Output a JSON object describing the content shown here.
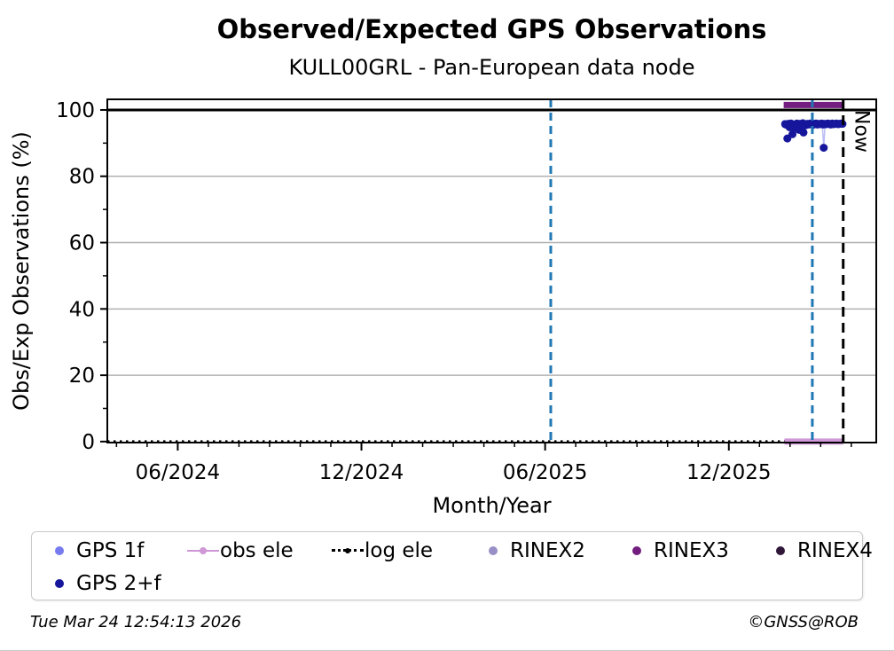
{
  "header": {
    "title": "Observed/Expected GPS Observations",
    "subtitle": "KULL00GRL - Pan-European data node"
  },
  "footer": {
    "timestamp": "Tue Mar 24 12:54:13 2026",
    "copyright": "©GNSS@ROB"
  },
  "chart_data": {
    "type": "scatter",
    "title": "Observed/Expected GPS Observations",
    "subtitle": "KULL00GRL - Pan-European data node",
    "xlabel": "Month/Year",
    "ylabel": "Obs/Exp Observations (%)",
    "xlim": [
      2024.225,
      2026.318
    ],
    "ylim": [
      -0.3,
      103.2
    ],
    "grid": true,
    "grid_color": "#b0b0b0",
    "x_ticks": [
      {
        "value": 2024.4167,
        "label": "06/2024"
      },
      {
        "value": 2024.9167,
        "label": "12/2024"
      },
      {
        "value": 2025.4167,
        "label": "06/2025"
      },
      {
        "value": 2025.9167,
        "label": "12/2025"
      }
    ],
    "y_ticks": [
      {
        "value": 0,
        "label": "0"
      },
      {
        "value": 20,
        "label": "20"
      },
      {
        "value": 40,
        "label": "40"
      },
      {
        "value": 60,
        "label": "60"
      },
      {
        "value": 80,
        "label": "80"
      },
      {
        "value": 100,
        "label": "100"
      }
    ],
    "y_minor_ticks": [
      10,
      30,
      50,
      70,
      90
    ],
    "x_minor_tick_interval_months": 1,
    "reference_lines": {
      "hlines": [
        {
          "y": 100,
          "color": "#000000",
          "style": "solid",
          "width": 3
        }
      ],
      "vlines": [
        {
          "x": 2025.432,
          "color": "#1f77b4",
          "style": "dashed",
          "width": 3,
          "label": ""
        },
        {
          "x": 2026.144,
          "color": "#1f77b4",
          "style": "dashed",
          "width": 3,
          "label": ""
        },
        {
          "x": 2026.228,
          "color": "#000000",
          "style": "dashed",
          "width": 3,
          "label": "Now"
        }
      ]
    },
    "series": [
      {
        "name": "log ele",
        "color": "#000000",
        "render": "dottedline",
        "width": 3,
        "points": [
          [
            2024.225,
            0
          ],
          [
            2026.228,
            0
          ]
        ]
      },
      {
        "name": "obs ele",
        "color": "#cf97d6",
        "render": "thickline",
        "width": 7,
        "points": [
          [
            2026.068,
            0
          ],
          [
            2026.228,
            0
          ]
        ]
      },
      {
        "name": "RINEX3",
        "color": "#721d7f",
        "render": "thickline",
        "width": 7,
        "points": [
          [
            2026.066,
            101.5
          ],
          [
            2026.228,
            101.5
          ]
        ]
      },
      {
        "name": "RINEX2",
        "color": "#988fc6",
        "render": "scatter",
        "radius": 4,
        "points": []
      },
      {
        "name": "RINEX4",
        "color": "#30173a",
        "render": "scatter",
        "radius": 4,
        "points": []
      },
      {
        "name": "GPS 1f",
        "color": "#767bf0",
        "line_color": "#b9bcf4",
        "render": "linescatter",
        "radius": 3.5,
        "points": [
          [
            2026.068,
            96.0
          ],
          [
            2026.076,
            95.9
          ],
          [
            2026.084,
            96.1
          ],
          [
            2026.092,
            95.9
          ],
          [
            2026.1,
            96.0
          ],
          [
            2026.108,
            95.9
          ],
          [
            2026.116,
            96.1
          ],
          [
            2026.124,
            96.0
          ],
          [
            2026.132,
            95.9
          ],
          [
            2026.14,
            96.0
          ],
          [
            2026.148,
            96.1
          ],
          [
            2026.156,
            95.9
          ],
          [
            2026.164,
            96.0
          ],
          [
            2026.171,
            95.9
          ],
          [
            2026.175,
            88.8
          ],
          [
            2026.179,
            96.0
          ],
          [
            2026.187,
            96.1
          ],
          [
            2026.195,
            95.9
          ],
          [
            2026.203,
            96.0
          ],
          [
            2026.211,
            96.1
          ],
          [
            2026.219,
            96.0
          ],
          [
            2026.226,
            96.0
          ]
        ]
      },
      {
        "name": "GPS 2+f",
        "color": "#16169c",
        "render": "scatter",
        "radius": 4.5,
        "points": [
          [
            2026.07,
            95.7
          ],
          [
            2026.074,
            95.5
          ],
          [
            2026.078,
            95.8
          ],
          [
            2026.082,
            95.4
          ],
          [
            2026.086,
            95.9
          ],
          [
            2026.09,
            95.6
          ],
          [
            2026.094,
            95.2
          ],
          [
            2026.098,
            95.7
          ],
          [
            2026.102,
            95.9
          ],
          [
            2026.106,
            95.5
          ],
          [
            2026.11,
            95.8
          ],
          [
            2026.114,
            95.6
          ],
          [
            2026.118,
            96.0
          ],
          [
            2026.122,
            95.7
          ],
          [
            2026.126,
            95.4
          ],
          [
            2026.13,
            95.8
          ],
          [
            2026.134,
            95.6
          ],
          [
            2026.138,
            95.9
          ],
          [
            2026.142,
            95.7
          ],
          [
            2026.146,
            95.5
          ],
          [
            2026.15,
            95.8
          ],
          [
            2026.154,
            95.9
          ],
          [
            2026.158,
            95.6
          ],
          [
            2026.162,
            95.8
          ],
          [
            2026.166,
            95.7
          ],
          [
            2026.17,
            95.9
          ],
          [
            2026.174,
            95.6
          ],
          [
            2026.178,
            95.8
          ],
          [
            2026.182,
            95.7
          ],
          [
            2026.186,
            95.9
          ],
          [
            2026.19,
            95.8
          ],
          [
            2026.194,
            95.6
          ],
          [
            2026.198,
            95.9
          ],
          [
            2026.202,
            95.7
          ],
          [
            2026.206,
            95.8
          ],
          [
            2026.21,
            95.9
          ],
          [
            2026.214,
            95.7
          ],
          [
            2026.218,
            95.8
          ],
          [
            2026.222,
            95.9
          ],
          [
            2026.226,
            95.8
          ],
          [
            2026.082,
            94.8
          ],
          [
            2026.094,
            94.6
          ],
          [
            2026.102,
            94.9
          ],
          [
            2026.11,
            94.7
          ],
          [
            2026.076,
            91.4
          ],
          [
            2026.09,
            92.7
          ],
          [
            2026.108,
            94.0
          ],
          [
            2026.12,
            93.2
          ],
          [
            2026.175,
            88.6
          ]
        ]
      }
    ]
  },
  "legend": {
    "items": [
      {
        "label": "GPS 1f",
        "marker": "dot",
        "color": "#767bf0"
      },
      {
        "label": "obs ele",
        "marker": "linedot",
        "color": "#cf97d6"
      },
      {
        "label": "log ele",
        "marker": "dotline",
        "color": "#000000"
      },
      {
        "label": "RINEX2",
        "marker": "dot",
        "color": "#988fc6"
      },
      {
        "label": "RINEX3",
        "marker": "dot",
        "color": "#721d7f"
      },
      {
        "label": "RINEX4",
        "marker": "dot",
        "color": "#30173a"
      },
      {
        "label": "GPS 2+f",
        "marker": "dot",
        "color": "#16169c"
      }
    ]
  }
}
